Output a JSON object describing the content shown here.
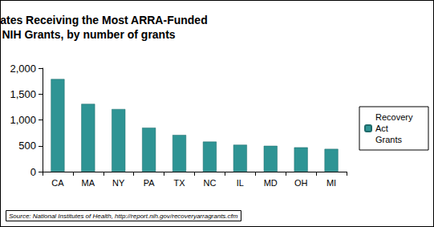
{
  "chart_data": {
    "type": "bar",
    "title": "Ten States Receiving the Most ARRA-Funded NIH Grants, by number of grants",
    "categories": [
      "CA",
      "MA",
      "NY",
      "PA",
      "TX",
      "NC",
      "IL",
      "MD",
      "OH",
      "MI"
    ],
    "series": [
      {
        "name": "Recovery Act Grants",
        "color": "#2e9494",
        "values": [
          1790,
          1310,
          1210,
          850,
          710,
          580,
          520,
          500,
          470,
          440
        ]
      }
    ],
    "ylim": [
      0,
      2000
    ],
    "yticks": [
      0,
      500,
      {
        "value": 1000,
        "label": "1,000"
      },
      {
        "value": 1500,
        "label": "1,500"
      },
      {
        "value": 2000,
        "label": "2,000"
      }
    ],
    "grid": false,
    "legend": "right",
    "annotations": [
      "Source: National Institutes of Health, http://report.nih.gov/recoveryarragrants.cfm"
    ]
  }
}
